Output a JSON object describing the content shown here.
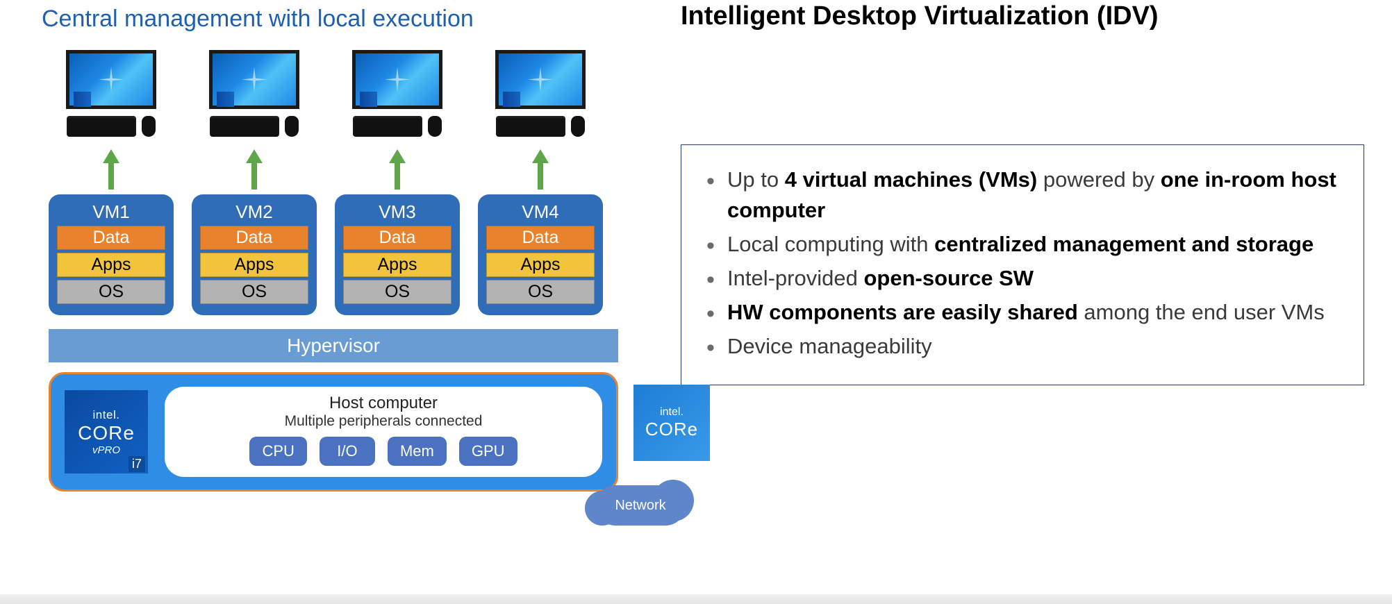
{
  "diagram": {
    "title": "Central management with local execution",
    "title_color": "#1f5fb0",
    "vms": [
      {
        "name": "VM1",
        "layers": [
          "Data",
          "Apps",
          "OS"
        ]
      },
      {
        "name": "VM2",
        "layers": [
          "Data",
          "Apps",
          "OS"
        ]
      },
      {
        "name": "VM3",
        "layers": [
          "Data",
          "Apps",
          "OS"
        ]
      },
      {
        "name": "VM4",
        "layers": [
          "Data",
          "Apps",
          "OS"
        ]
      }
    ],
    "vm_block_color": "#2f6db8",
    "layer_colors": {
      "Data": "#e8822c",
      "Apps": "#f2c43c",
      "OS": "#b3b3b3"
    },
    "arrow_color": "#5fa64a",
    "hypervisor": {
      "label": "Hypervisor",
      "color": "#6a9cd4"
    },
    "host": {
      "bg_color": "#2f8de6",
      "border_color": "#e8822c",
      "badge_main": {
        "brand": "intel.",
        "line": "CORe",
        "sub": "vPRO",
        "tier": "i7",
        "bg": "#0a4aa0"
      },
      "title": "Host computer",
      "subtitle": "Multiple peripherals connected",
      "components": [
        "CPU",
        "I/O",
        "Mem",
        "GPU"
      ],
      "component_color": "#4a72c0",
      "badge_side": {
        "brand": "intel.",
        "line": "CORe",
        "bg": "#1b7ed6"
      },
      "network": {
        "label": "Network",
        "color": "#5e86c8"
      }
    }
  },
  "main_title": "Intelligent Desktop Virtualization (IDV)",
  "features": [
    {
      "html": "Up to <b>4 virtual machines (VMs)</b> powered by <b>one in-room host computer</b>"
    },
    {
      "html": "Local computing with <b>centralized management and storage</b>"
    },
    {
      "html": "Intel-provided <b>open-source SW</b>"
    },
    {
      "html": "<b>HW components are easily shared</b> among the end user VMs"
    },
    {
      "html": "Device manageability"
    }
  ],
  "features_border_color": "#2a3b6a"
}
